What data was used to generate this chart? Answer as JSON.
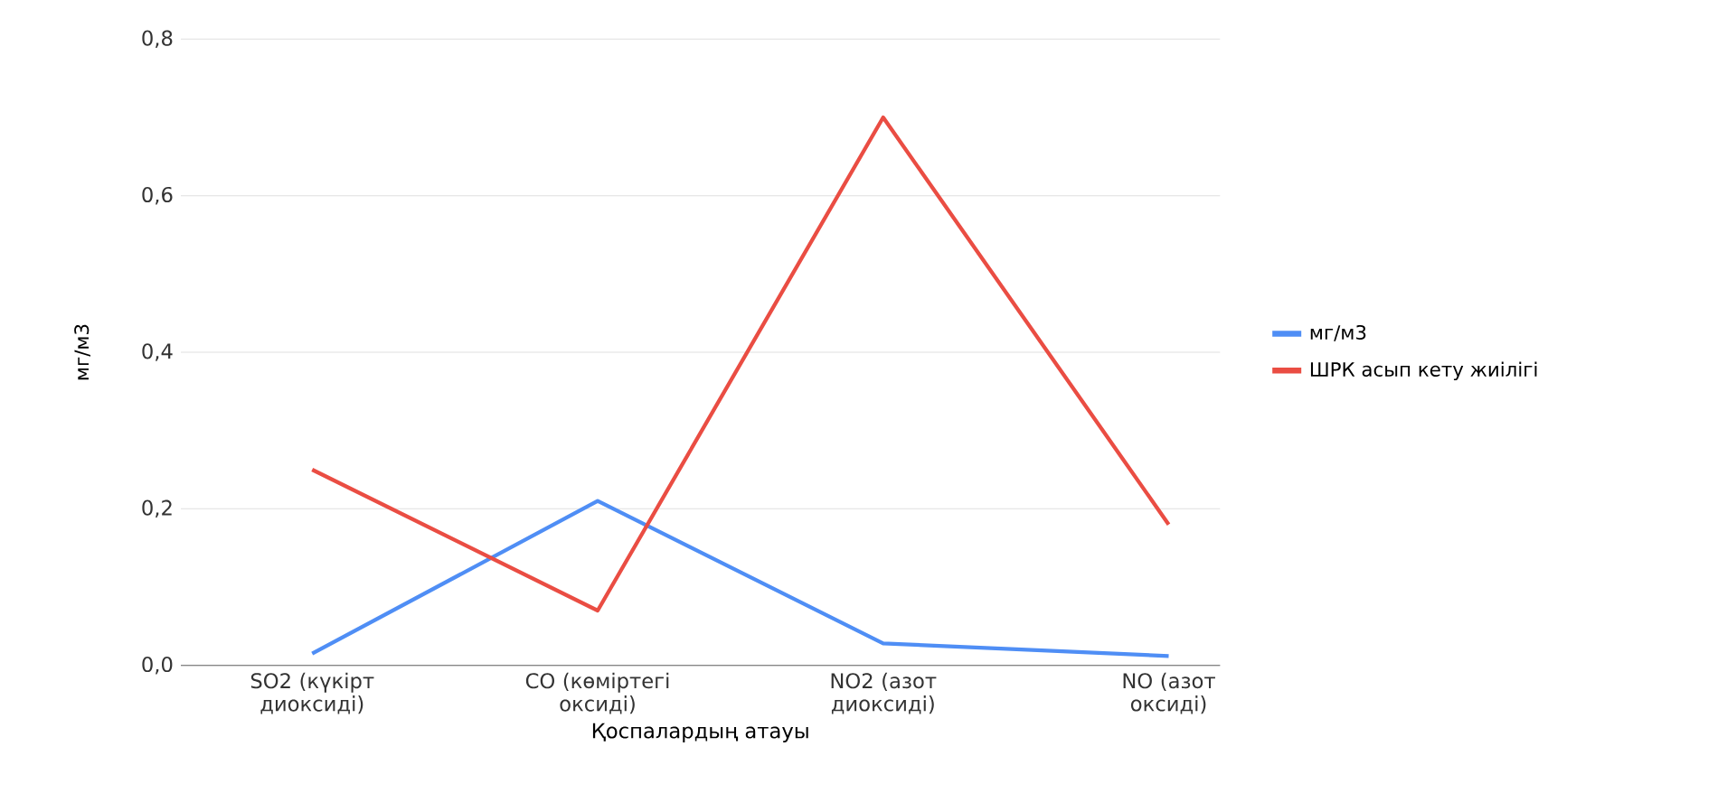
{
  "chart_data": {
    "type": "line",
    "xlabel": "Қоспалардың атауы",
    "ylabel": "мг/м3",
    "categories": [
      "SO2 (күкірт диоксиді)",
      "CO (көміртегі оксиді)",
      "NO2 (азот диоксиді)",
      "NO (азот оксиді)"
    ],
    "series": [
      {
        "name": "мг/м3",
        "color": "#4f8ef5",
        "values": [
          0.015,
          0.21,
          0.028,
          0.012
        ]
      },
      {
        "name": "ШРК асып кету жиілігі",
        "color": "#ea4d43",
        "values": [
          0.25,
          0.07,
          0.7,
          0.18
        ]
      }
    ],
    "ylim": [
      0,
      0.8
    ],
    "yticks": [
      {
        "value": 0,
        "label": "0,0"
      },
      {
        "value": 0.2,
        "label": "0,2"
      },
      {
        "value": 0.4,
        "label": "0,4"
      },
      {
        "value": 0.6,
        "label": "0,6"
      },
      {
        "value": 0.8,
        "label": "0,8"
      }
    ],
    "grid": "y",
    "legend": "right",
    "marker": "none",
    "line_style": "solid"
  }
}
